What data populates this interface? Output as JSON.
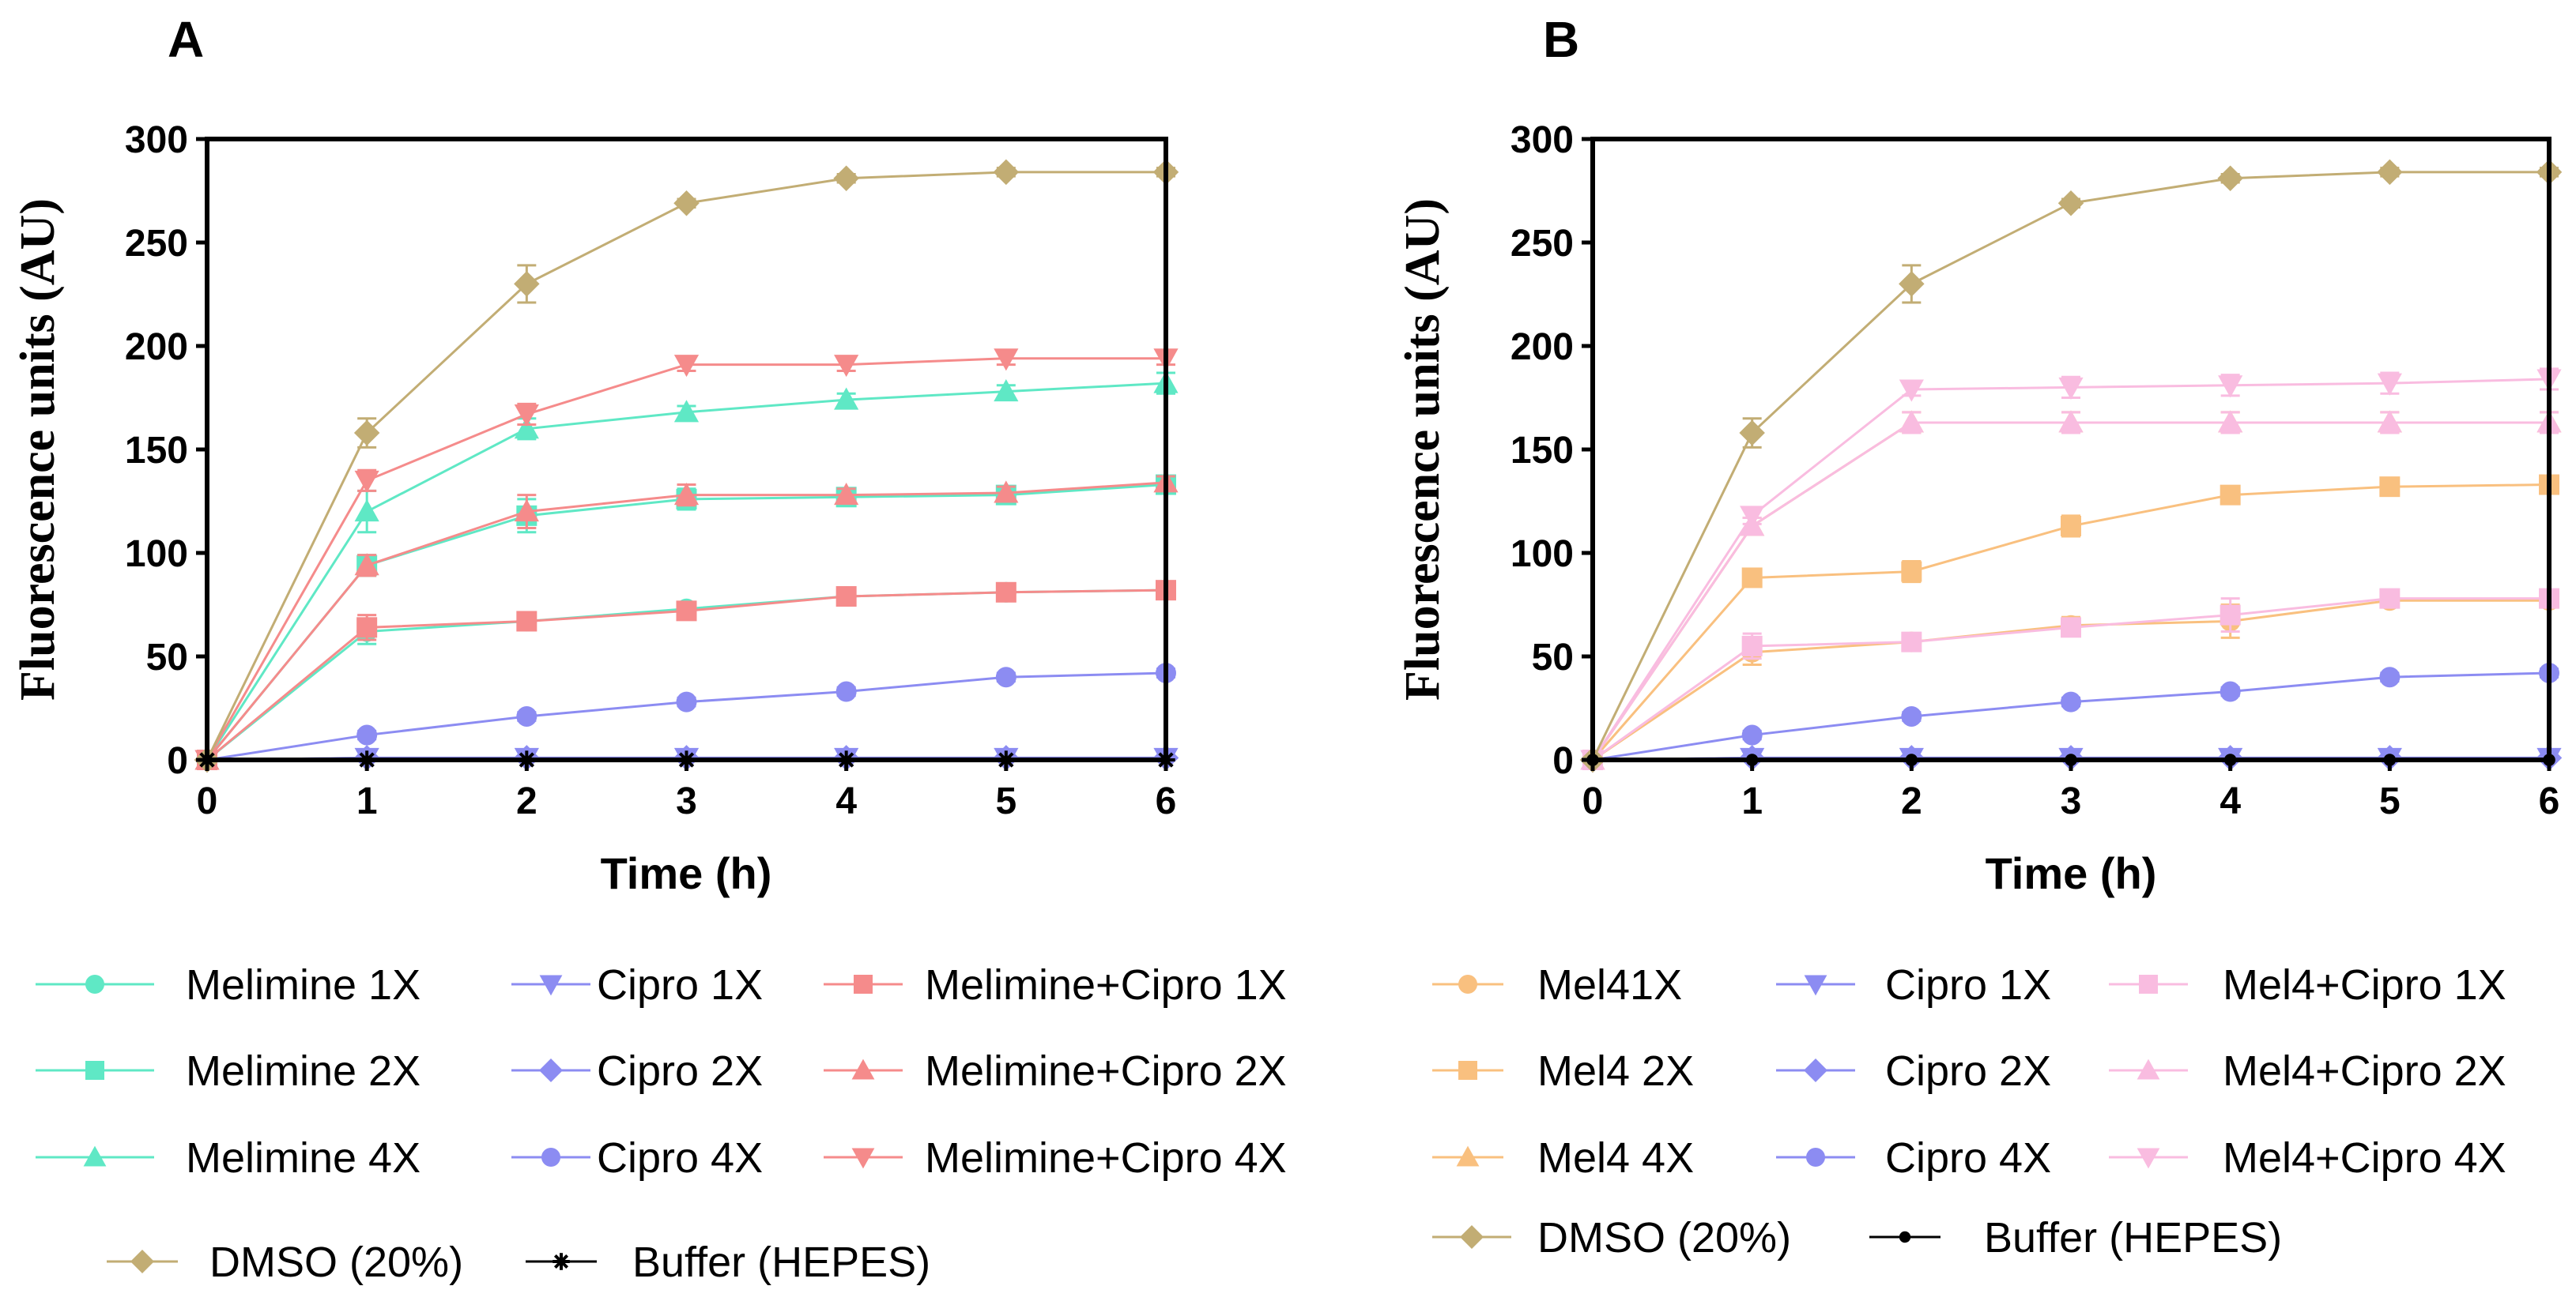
{
  "chart_data": [
    {
      "panel": "A",
      "type": "line",
      "title": "A",
      "xlabel": "Time (h)",
      "ylabel": "Fluorescence units (AU)",
      "xlim": [
        0,
        6
      ],
      "ylim": [
        0,
        300
      ],
      "x_ticks": [
        "0",
        "1",
        "2",
        "3",
        "4",
        "5",
        "6"
      ],
      "y_ticks": [
        "0",
        "50",
        "100",
        "150",
        "200",
        "250",
        "300"
      ],
      "x": [
        0,
        1,
        2,
        3,
        4,
        5,
        6
      ],
      "series": [
        {
          "name": "Melimine 1X",
          "color": "#5fe8c5",
          "marker": "circle",
          "values": [
            0,
            62,
            67,
            73,
            79,
            81,
            82
          ],
          "err": [
            0,
            6,
            3,
            3,
            3,
            2,
            2
          ]
        },
        {
          "name": "Melimine 2X",
          "color": "#5fe8c5",
          "marker": "square",
          "values": [
            0,
            94,
            118,
            126,
            127,
            128,
            133
          ],
          "err": [
            0,
            5,
            8,
            5,
            3,
            3,
            3
          ]
        },
        {
          "name": "Melimine 4X",
          "color": "#5fe8c5",
          "marker": "triangle-up",
          "values": [
            0,
            120,
            160,
            168,
            174,
            178,
            182
          ],
          "err": [
            0,
            10,
            5,
            3,
            3,
            3,
            5
          ]
        },
        {
          "name": "Cipro 1X",
          "color": "#8c8cf2",
          "marker": "triangle-down",
          "values": [
            0,
            1,
            1,
            1,
            1,
            1,
            1
          ],
          "err": [
            0,
            0,
            0,
            0,
            0,
            0,
            0
          ]
        },
        {
          "name": "Cipro 2X",
          "color": "#8c8cf2",
          "marker": "diamond",
          "values": [
            0,
            1,
            1,
            1,
            1,
            1,
            1
          ],
          "err": [
            0,
            0,
            0,
            0,
            0,
            0,
            0
          ]
        },
        {
          "name": "Cipro 4X",
          "color": "#8c8cf2",
          "marker": "circle",
          "values": [
            0,
            12,
            21,
            28,
            33,
            40,
            42
          ],
          "err": [
            0,
            2,
            2,
            2,
            2,
            2,
            2
          ]
        },
        {
          "name": "Melimine+Cipro 1X",
          "color": "#f58b8b",
          "marker": "square",
          "values": [
            0,
            64,
            67,
            72,
            79,
            81,
            82
          ],
          "err": [
            0,
            6,
            3,
            3,
            3,
            2,
            2
          ]
        },
        {
          "name": "Melimine+Cipro 2X",
          "color": "#f58b8b",
          "marker": "triangle-up",
          "values": [
            0,
            94,
            120,
            128,
            128,
            129,
            134
          ],
          "err": [
            0,
            5,
            8,
            5,
            3,
            3,
            3
          ]
        },
        {
          "name": "Melimine+Cipro 4X",
          "color": "#f58b8b",
          "marker": "triangle-down",
          "values": [
            0,
            135,
            167,
            191,
            191,
            194,
            194
          ],
          "err": [
            0,
            5,
            5,
            3,
            3,
            3,
            3
          ]
        },
        {
          "name": "DMSO (20%)",
          "color": "#c2ad74",
          "marker": "diamond",
          "values": [
            0,
            158,
            230,
            269,
            281,
            284,
            284
          ],
          "err": [
            0,
            7,
            9,
            2,
            2,
            2,
            2
          ]
        },
        {
          "name": "Buffer (HEPES)",
          "color": "#000000",
          "marker": "star",
          "values": [
            0,
            0,
            0,
            0,
            0,
            0,
            0
          ],
          "err": [
            0,
            0,
            0,
            0,
            0,
            0,
            0
          ]
        }
      ],
      "legend_rows": [
        [
          "Melimine 1X",
          "Cipro 1X",
          "Melimine+Cipro 1X"
        ],
        [
          "Melimine 2X",
          "Cipro 2X",
          "Melimine+Cipro 2X"
        ],
        [
          "Melimine 4X",
          "Cipro 4X",
          "Melimine+Cipro 4X"
        ],
        [
          "DMSO (20%)",
          "Buffer (HEPES)"
        ]
      ]
    },
    {
      "panel": "B",
      "type": "line",
      "title": "B",
      "xlabel": "Time (h)",
      "ylabel": "Fluorescence units (AU)",
      "xlim": [
        0,
        6
      ],
      "ylim": [
        0,
        300
      ],
      "x_ticks": [
        "0",
        "1",
        "2",
        "3",
        "4",
        "5",
        "6"
      ],
      "y_ticks": [
        "0",
        "50",
        "100",
        "150",
        "200",
        "250",
        "300"
      ],
      "x": [
        0,
        1,
        2,
        3,
        4,
        5,
        6
      ],
      "series": [
        {
          "name": "Mel41X",
          "color": "#f9c07f",
          "marker": "circle",
          "values": [
            0,
            52,
            57,
            65,
            67,
            77,
            77
          ],
          "err": [
            0,
            6,
            4,
            4,
            8,
            3,
            3
          ]
        },
        {
          "name": "Mel4 2X",
          "color": "#f9c07f",
          "marker": "square",
          "values": [
            0,
            88,
            91,
            113,
            128,
            132,
            133
          ],
          "err": [
            0,
            4,
            5,
            5,
            3,
            3,
            3
          ]
        },
        {
          "name": "Mel4 4X",
          "color": "#f9c07f",
          "marker": "triangle-up",
          "values": [
            0,
            113,
            163,
            163,
            163,
            163,
            163
          ],
          "err": [
            0,
            4,
            5,
            5,
            5,
            5,
            5
          ]
        },
        {
          "name": "Cipro 1X",
          "color": "#8c8cf2",
          "marker": "triangle-down",
          "values": [
            0,
            1,
            1,
            1,
            1,
            1,
            1
          ],
          "err": [
            0,
            0,
            0,
            0,
            0,
            0,
            0
          ]
        },
        {
          "name": "Cipro 2X",
          "color": "#8c8cf2",
          "marker": "diamond",
          "values": [
            0,
            1,
            1,
            1,
            1,
            1,
            1
          ],
          "err": [
            0,
            0,
            0,
            0,
            0,
            0,
            0
          ]
        },
        {
          "name": "Cipro 4X",
          "color": "#8c8cf2",
          "marker": "circle",
          "values": [
            0,
            12,
            21,
            28,
            33,
            40,
            42
          ],
          "err": [
            0,
            2,
            2,
            2,
            2,
            2,
            2
          ]
        },
        {
          "name": "Mel4+Cipro 1X",
          "color": "#f9bce0",
          "marker": "square",
          "values": [
            0,
            55,
            57,
            64,
            70,
            78,
            78
          ],
          "err": [
            0,
            6,
            4,
            4,
            8,
            3,
            3
          ]
        },
        {
          "name": "Mel4+Cipro 2X",
          "color": "#f9bce0",
          "marker": "triangle-up",
          "values": [
            0,
            113,
            163,
            163,
            163,
            163,
            163
          ],
          "err": [
            0,
            4,
            5,
            5,
            5,
            5,
            5
          ]
        },
        {
          "name": "Mel4+Cipro 4X",
          "color": "#f9bce0",
          "marker": "triangle-down",
          "values": [
            0,
            118,
            179,
            180,
            181,
            182,
            184
          ],
          "err": [
            0,
            4,
            3,
            5,
            5,
            5,
            5
          ]
        },
        {
          "name": "DMSO (20%)",
          "color": "#c2ad74",
          "marker": "diamond",
          "values": [
            0,
            158,
            230,
            269,
            281,
            284,
            284
          ],
          "err": [
            0,
            7,
            9,
            2,
            2,
            2,
            2
          ]
        },
        {
          "name": "Buffer (HEPES)",
          "color": "#000000",
          "marker": "circle-small",
          "values": [
            0,
            0,
            0,
            0,
            0,
            0,
            0
          ],
          "err": [
            0,
            0,
            0,
            0,
            0,
            0,
            0
          ]
        }
      ],
      "legend_rows": [
        [
          "Mel41X",
          "Cipro 1X",
          "Mel4+Cipro 1X"
        ],
        [
          "Mel4 2X",
          "Cipro 2X",
          "Mel4+Cipro 2X"
        ],
        [
          "Mel4 4X",
          "Cipro 4X",
          "Mel4+Cipro 4X"
        ],
        [
          "DMSO (20%)",
          "Buffer (HEPES)"
        ]
      ]
    }
  ]
}
